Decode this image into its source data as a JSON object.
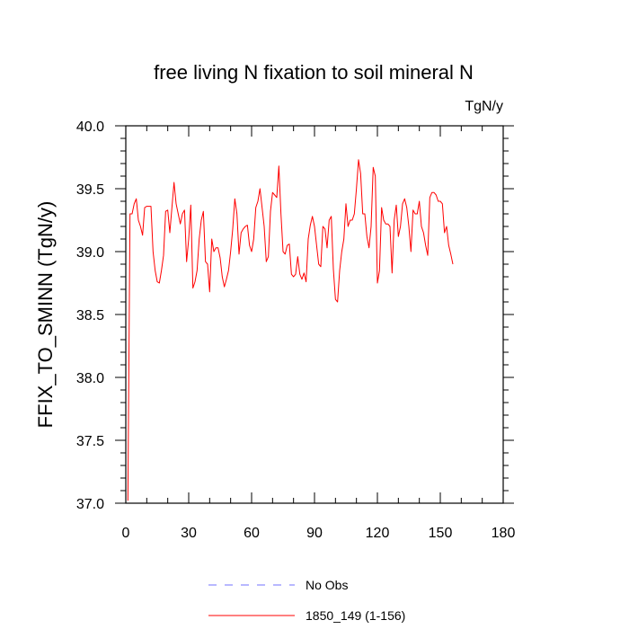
{
  "chart_data": {
    "type": "line",
    "title": "free living N fixation to soil mineral N",
    "units_label": "TgN/y",
    "ylabel": "FFIX_TO_SMINN  (TgN/y)",
    "xlabel": "",
    "xlim": [
      0,
      180
    ],
    "ylim": [
      37.0,
      40.0
    ],
    "x_ticks": [
      "0",
      "30",
      "60",
      "90",
      "120",
      "150",
      "180"
    ],
    "y_ticks": [
      "37.0",
      "37.5",
      "38.0",
      "38.5",
      "39.0",
      "39.5",
      "40.0"
    ],
    "series": [
      {
        "name": "1850_149 (1-156)",
        "color": "#ff0000",
        "style": "solid",
        "x": [
          1,
          2,
          3,
          4,
          5,
          6,
          7,
          8,
          9,
          10,
          11,
          12,
          13,
          14,
          15,
          16,
          17,
          18,
          19,
          20,
          21,
          22,
          23,
          24,
          25,
          26,
          27,
          28,
          29,
          30,
          31,
          32,
          33,
          34,
          35,
          36,
          37,
          38,
          39,
          40,
          41,
          42,
          43,
          44,
          45,
          46,
          47,
          48,
          49,
          50,
          51,
          52,
          53,
          54,
          55,
          56,
          57,
          58,
          59,
          60,
          61,
          62,
          63,
          64,
          65,
          66,
          67,
          68,
          69,
          70,
          71,
          72,
          73,
          74,
          75,
          76,
          77,
          78,
          79,
          80,
          81,
          82,
          83,
          84,
          85,
          86,
          87,
          88,
          89,
          90,
          91,
          92,
          93,
          94,
          95,
          96,
          97,
          98,
          99,
          100,
          101,
          102,
          103,
          104,
          105,
          106,
          107,
          108,
          109,
          110,
          111,
          112,
          113,
          114,
          115,
          116,
          117,
          118,
          119,
          120,
          121,
          122,
          123,
          124,
          125,
          126,
          127,
          128,
          129,
          130,
          131,
          132,
          133,
          134,
          135,
          136,
          137,
          138,
          139,
          140,
          141,
          142,
          143,
          144,
          145,
          146,
          147,
          148,
          149,
          150,
          151,
          152,
          153,
          154,
          155,
          156
        ],
        "values": [
          37.02,
          39.3,
          39.3,
          39.38,
          39.42,
          39.25,
          39.2,
          39.13,
          39.35,
          39.36,
          39.36,
          39.36,
          39.0,
          38.85,
          38.76,
          38.75,
          38.85,
          38.97,
          39.32,
          39.33,
          39.15,
          39.35,
          39.55,
          39.38,
          39.3,
          39.22,
          39.3,
          39.33,
          38.92,
          39.1,
          39.37,
          38.71,
          38.76,
          38.85,
          39.1,
          39.25,
          39.32,
          38.92,
          38.9,
          38.68,
          39.1,
          39.0,
          39.03,
          39.03,
          38.95,
          38.8,
          38.72,
          38.78,
          38.85,
          39.0,
          39.18,
          39.42,
          39.3,
          38.98,
          39.15,
          39.18,
          39.2,
          39.21,
          39.05,
          39.0,
          39.1,
          39.35,
          39.4,
          39.5,
          39.35,
          39.2,
          38.92,
          38.96,
          39.32,
          39.47,
          39.45,
          39.43,
          39.68,
          39.3,
          39.0,
          38.98,
          39.05,
          39.06,
          38.82,
          38.8,
          38.82,
          38.96,
          38.82,
          38.78,
          38.83,
          38.76,
          39.1,
          39.21,
          39.28,
          39.2,
          39.05,
          38.9,
          38.88,
          39.2,
          39.18,
          39.03,
          39.25,
          39.28,
          38.86,
          38.62,
          38.6,
          38.85,
          39.0,
          39.1,
          39.38,
          39.2,
          39.25,
          39.25,
          39.3,
          39.5,
          39.73,
          39.62,
          39.3,
          39.3,
          39.12,
          39.03,
          39.2,
          39.67,
          39.6,
          38.75,
          38.85,
          39.35,
          39.25,
          39.22,
          39.22,
          39.2,
          38.83,
          39.25,
          39.37,
          39.12,
          39.2,
          39.38,
          39.42,
          39.35,
          39.2,
          39.0,
          39.33,
          39.3,
          39.3,
          39.4,
          39.2,
          39.15,
          39.05,
          38.97,
          39.43,
          39.47,
          39.47,
          39.45,
          39.4,
          39.4,
          39.38,
          39.15,
          39.2,
          39.05,
          38.98,
          38.9
        ]
      }
    ],
    "legend": [
      {
        "label": "No Obs",
        "color": "#7070ff",
        "style": "dashed"
      },
      {
        "label": "1850_149 (1-156)",
        "color": "#ff0000",
        "style": "solid"
      }
    ],
    "grid": false,
    "legend_position": "bottom"
  }
}
